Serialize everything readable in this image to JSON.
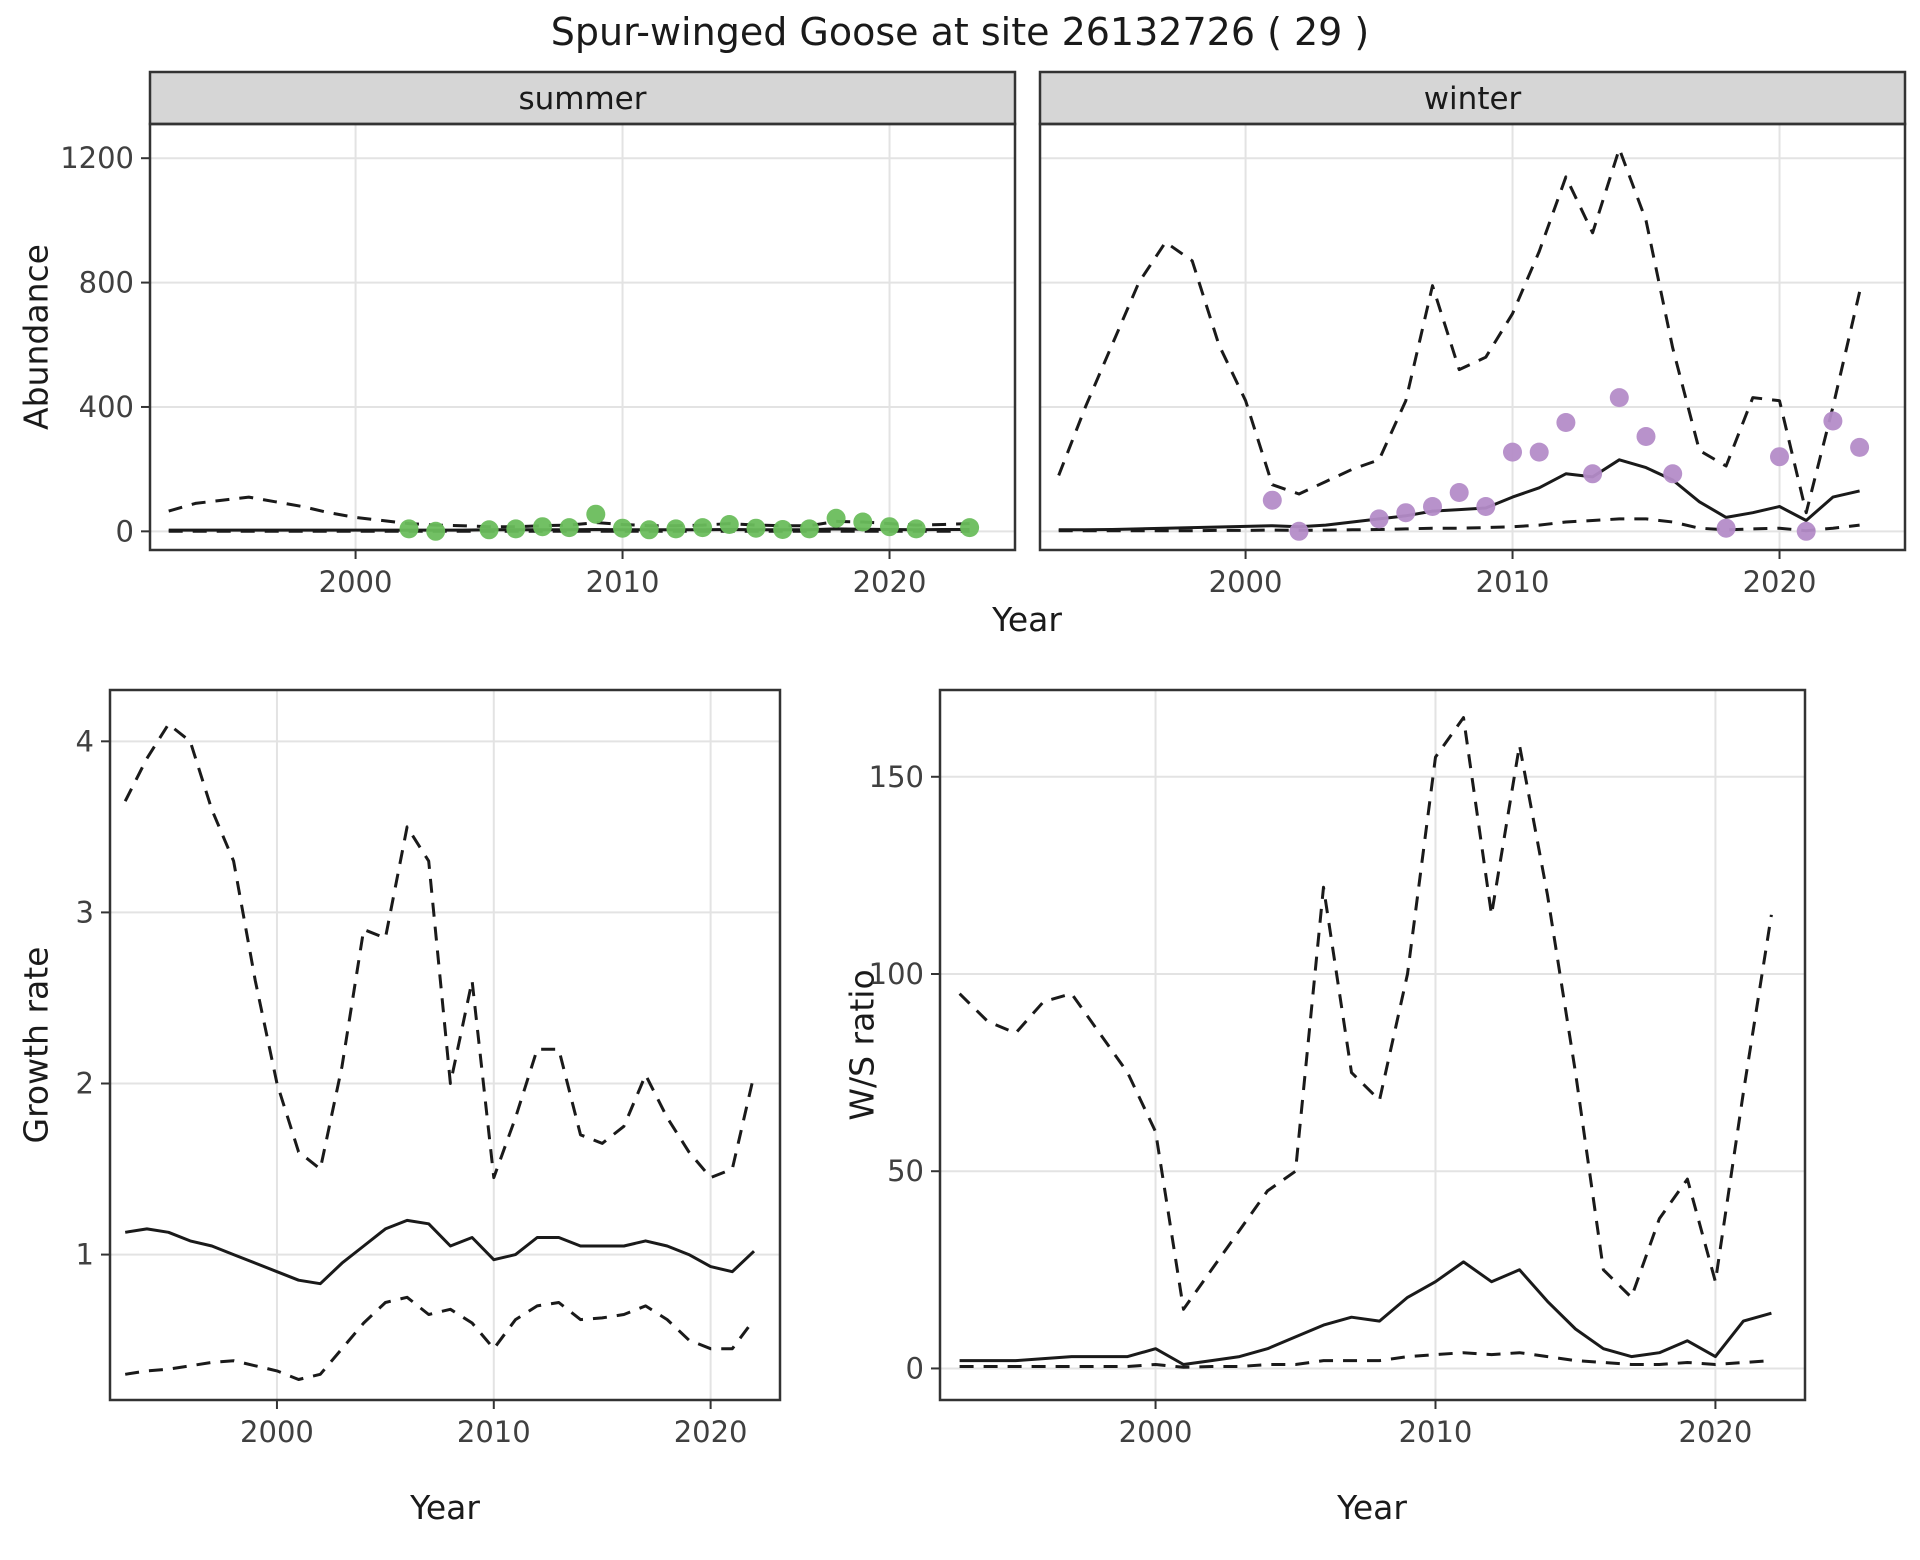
{
  "title": "Spur-winged Goose at site 26132726 ( 29 )",
  "axes": {
    "abundance_ylabel": "Abundance",
    "top_xlabel": "Year",
    "growth_ylabel": "Growth rate",
    "growth_xlabel": "Year",
    "ws_ylabel": "W/S ratio",
    "ws_xlabel": "Year"
  },
  "colors": {
    "summer_points": "#6abd5c",
    "winter_points": "#b48cc8",
    "line": "#1a1a1a",
    "grid": "#e3e3e3",
    "strip_bg": "#d6d6d6",
    "panel_border": "#333333"
  },
  "chart_data": [
    {
      "id": "abundance-summer",
      "type": "line",
      "facet_label": "summer",
      "ylabel": "Abundance",
      "xlabel": "Year",
      "xlim": [
        1992.3,
        2024.7
      ],
      "ylim": [
        -60,
        1310
      ],
      "xticks": [
        2000,
        2010,
        2020
      ],
      "yticks": [
        0,
        400,
        800,
        1200
      ],
      "x": [
        1993,
        1994,
        1995,
        1996,
        1997,
        1998,
        1999,
        2000,
        2001,
        2002,
        2003,
        2004,
        2005,
        2006,
        2007,
        2008,
        2009,
        2010,
        2011,
        2012,
        2013,
        2014,
        2015,
        2016,
        2017,
        2018,
        2019,
        2020,
        2021,
        2022,
        2023
      ],
      "series": [
        {
          "name": "median",
          "style": "solid",
          "values": [
            4,
            4,
            4,
            4,
            4,
            4,
            4,
            4,
            4,
            4,
            4,
            4,
            5,
            5,
            5,
            5,
            6,
            5,
            5,
            5,
            5,
            6,
            5,
            5,
            5,
            8,
            7,
            6,
            5,
            6,
            6
          ]
        },
        {
          "name": "upper_ci",
          "style": "dashed",
          "values": [
            65,
            90,
            100,
            110,
            95,
            80,
            60,
            45,
            35,
            25,
            20,
            18,
            15,
            15,
            18,
            20,
            28,
            22,
            18,
            18,
            20,
            25,
            20,
            18,
            18,
            32,
            30,
            25,
            20,
            22,
            25
          ]
        },
        {
          "name": "lower_ci",
          "style": "dashed",
          "values": [
            0,
            0,
            0,
            0,
            0,
            0,
            0,
            0,
            0,
            0,
            0,
            0,
            0,
            0,
            0,
            0,
            0,
            0,
            0,
            0,
            0,
            0,
            0,
            0,
            0,
            0,
            0,
            0,
            0,
            0,
            0
          ]
        }
      ],
      "points": {
        "name": "observed-summer",
        "color_key": "summer_points",
        "x": [
          2002,
          2003,
          2005,
          2006,
          2007,
          2008,
          2009,
          2010,
          2011,
          2012,
          2013,
          2014,
          2015,
          2016,
          2017,
          2018,
          2019,
          2020,
          2021,
          2023
        ],
        "y": [
          8,
          0,
          5,
          8,
          15,
          12,
          55,
          10,
          5,
          8,
          12,
          22,
          10,
          6,
          8,
          42,
          30,
          15,
          8,
          12
        ]
      }
    },
    {
      "id": "abundance-winter",
      "type": "line",
      "facet_label": "winter",
      "ylabel": "Abundance",
      "xlabel": "Year",
      "xlim": [
        1992.3,
        2024.7
      ],
      "ylim": [
        -60,
        1310
      ],
      "xticks": [
        2000,
        2010,
        2020
      ],
      "yticks": [
        0,
        400,
        800,
        1200
      ],
      "x": [
        1993,
        1994,
        1995,
        1996,
        1997,
        1998,
        1999,
        2000,
        2001,
        2002,
        2003,
        2004,
        2005,
        2006,
        2007,
        2008,
        2009,
        2010,
        2011,
        2012,
        2013,
        2014,
        2015,
        2016,
        2017,
        2018,
        2019,
        2020,
        2021,
        2022,
        2023
      ],
      "series": [
        {
          "name": "median",
          "style": "solid",
          "values": [
            5,
            5,
            6,
            8,
            10,
            12,
            14,
            16,
            18,
            15,
            20,
            30,
            40,
            50,
            65,
            70,
            75,
            110,
            140,
            185,
            175,
            230,
            205,
            165,
            95,
            45,
            60,
            80,
            35,
            110,
            130
          ]
        },
        {
          "name": "upper_ci",
          "style": "dashed",
          "values": [
            180,
            400,
            600,
            800,
            930,
            870,
            600,
            420,
            150,
            120,
            160,
            200,
            230,
            420,
            790,
            520,
            560,
            700,
            900,
            1140,
            960,
            1230,
            1000,
            590,
            260,
            210,
            430,
            420,
            60,
            400,
            770
          ]
        },
        {
          "name": "lower_ci",
          "style": "dashed",
          "values": [
            2,
            2,
            2,
            2,
            2,
            2,
            3,
            3,
            4,
            3,
            4,
            5,
            6,
            8,
            10,
            10,
            12,
            15,
            20,
            30,
            35,
            40,
            40,
            30,
            10,
            5,
            8,
            10,
            2,
            10,
            20
          ]
        }
      ],
      "points": {
        "name": "observed-winter",
        "color_key": "winter_points",
        "x": [
          2001,
          2002,
          2005,
          2006,
          2007,
          2008,
          2009,
          2010,
          2011,
          2012,
          2013,
          2014,
          2015,
          2016,
          2018,
          2020,
          2021,
          2022,
          2023
        ],
        "y": [
          100,
          0,
          40,
          60,
          80,
          125,
          80,
          255,
          255,
          350,
          185,
          430,
          305,
          185,
          10,
          240,
          0,
          355,
          270
        ]
      }
    },
    {
      "id": "growth-rate",
      "type": "line",
      "facet_label": null,
      "ylabel": "Growth rate",
      "xlabel": "Year",
      "xlim": [
        1992.3,
        2023.2
      ],
      "ylim": [
        0.15,
        4.3
      ],
      "xticks": [
        2000,
        2010,
        2020
      ],
      "yticks": [
        1,
        2,
        3,
        4
      ],
      "x": [
        1993,
        1994,
        1995,
        1996,
        1997,
        1998,
        1999,
        2000,
        2001,
        2002,
        2003,
        2004,
        2005,
        2006,
        2007,
        2008,
        2009,
        2010,
        2011,
        2012,
        2013,
        2014,
        2015,
        2016,
        2017,
        2018,
        2019,
        2020,
        2021,
        2022
      ],
      "series": [
        {
          "name": "median",
          "style": "solid",
          "values": [
            1.13,
            1.15,
            1.13,
            1.08,
            1.05,
            1.0,
            0.95,
            0.9,
            0.85,
            0.83,
            0.95,
            1.05,
            1.15,
            1.2,
            1.18,
            1.05,
            1.1,
            0.97,
            1.0,
            1.1,
            1.1,
            1.05,
            1.05,
            1.05,
            1.08,
            1.05,
            1.0,
            0.93,
            0.9,
            1.02
          ]
        },
        {
          "name": "upper_ci",
          "style": "dashed",
          "values": [
            3.65,
            3.9,
            4.1,
            4.0,
            3.6,
            3.3,
            2.6,
            2.0,
            1.6,
            1.5,
            2.1,
            2.9,
            2.85,
            3.5,
            3.3,
            2.0,
            2.6,
            1.45,
            1.8,
            2.2,
            2.2,
            1.7,
            1.65,
            1.75,
            2.05,
            1.8,
            1.6,
            1.45,
            1.5,
            2.05
          ]
        },
        {
          "name": "lower_ci",
          "style": "dashed",
          "values": [
            0.3,
            0.32,
            0.33,
            0.35,
            0.37,
            0.38,
            0.35,
            0.32,
            0.27,
            0.3,
            0.45,
            0.6,
            0.72,
            0.75,
            0.65,
            0.68,
            0.6,
            0.45,
            0.62,
            0.7,
            0.72,
            0.62,
            0.63,
            0.65,
            0.7,
            0.62,
            0.5,
            0.45,
            0.45,
            0.62
          ]
        }
      ],
      "points": null
    },
    {
      "id": "ws-ratio",
      "type": "line",
      "facet_label": null,
      "ylabel": "W/S ratio",
      "xlabel": "Year",
      "xlim": [
        1992.3,
        2023.2
      ],
      "ylim": [
        -8,
        172
      ],
      "xticks": [
        2000,
        2010,
        2020
      ],
      "yticks": [
        0,
        50,
        100,
        150
      ],
      "x": [
        1993,
        1994,
        1995,
        1996,
        1997,
        1998,
        1999,
        2000,
        2001,
        2002,
        2003,
        2004,
        2005,
        2006,
        2007,
        2008,
        2009,
        2010,
        2011,
        2012,
        2013,
        2014,
        2015,
        2016,
        2017,
        2018,
        2019,
        2020,
        2021,
        2022
      ],
      "series": [
        {
          "name": "median",
          "style": "solid",
          "values": [
            2,
            2,
            2,
            2.5,
            3,
            3,
            3,
            5,
            1,
            2,
            3,
            5,
            8,
            11,
            13,
            12,
            18,
            22,
            27,
            22,
            25,
            17,
            10,
            5,
            3,
            4,
            7,
            3,
            12,
            14
          ]
        },
        {
          "name": "upper_ci",
          "style": "dashed",
          "values": [
            95,
            88,
            85,
            93,
            95,
            85,
            75,
            60,
            15,
            25,
            35,
            45,
            50,
            122,
            75,
            68,
            100,
            155,
            165,
            115,
            158,
            120,
            75,
            25,
            18,
            38,
            48,
            22,
            70,
            115
          ]
        },
        {
          "name": "lower_ci",
          "style": "dashed",
          "values": [
            0.5,
            0.5,
            0.5,
            0.5,
            0.5,
            0.5,
            0.5,
            1,
            0.3,
            0.5,
            0.5,
            1,
            1,
            2,
            2,
            2,
            3,
            3.5,
            4,
            3.5,
            4,
            3,
            2,
            1.5,
            1,
            1,
            1.5,
            1,
            1.5,
            2
          ]
        }
      ],
      "points": null
    }
  ]
}
